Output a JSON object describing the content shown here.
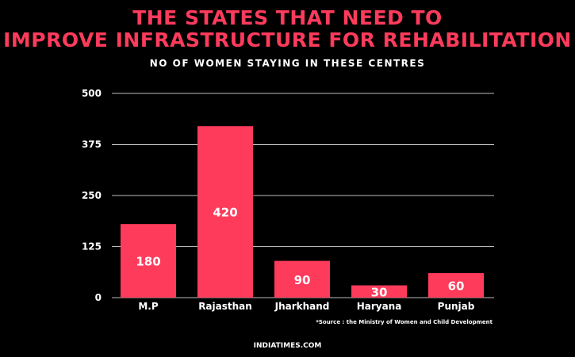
{
  "header": {
    "title_line1": "THE STATES THAT NEED TO",
    "title_line2": "IMPROVE INFRASTRUCTURE FOR REHABILITATION",
    "subtitle": "NO OF WOMEN STAYING IN THESE CENTRES"
  },
  "source_note": "*Source : the Ministry of Women and Child Development",
  "footer": "INDIATIMES.COM",
  "colors": {
    "bar": "#ff3b5c",
    "background": "#000000",
    "text": "#ffffff",
    "grid": "#bbbbbb"
  },
  "chart_data": {
    "type": "bar",
    "title": "NO OF WOMEN STAYING IN THESE CENTRES",
    "categories": [
      "M.P",
      "Rajasthan",
      "Jharkhand",
      "Haryana",
      "Punjab"
    ],
    "values": [
      180,
      420,
      90,
      30,
      60
    ],
    "data_labels": [
      "180",
      "420",
      "90",
      "30",
      "60"
    ],
    "ylim": [
      0,
      500
    ],
    "yticks": [
      0,
      125,
      250,
      375,
      500
    ],
    "ytick_labels": [
      "0",
      "125",
      "250",
      "375",
      "500"
    ],
    "grid": true,
    "legend": "none"
  }
}
